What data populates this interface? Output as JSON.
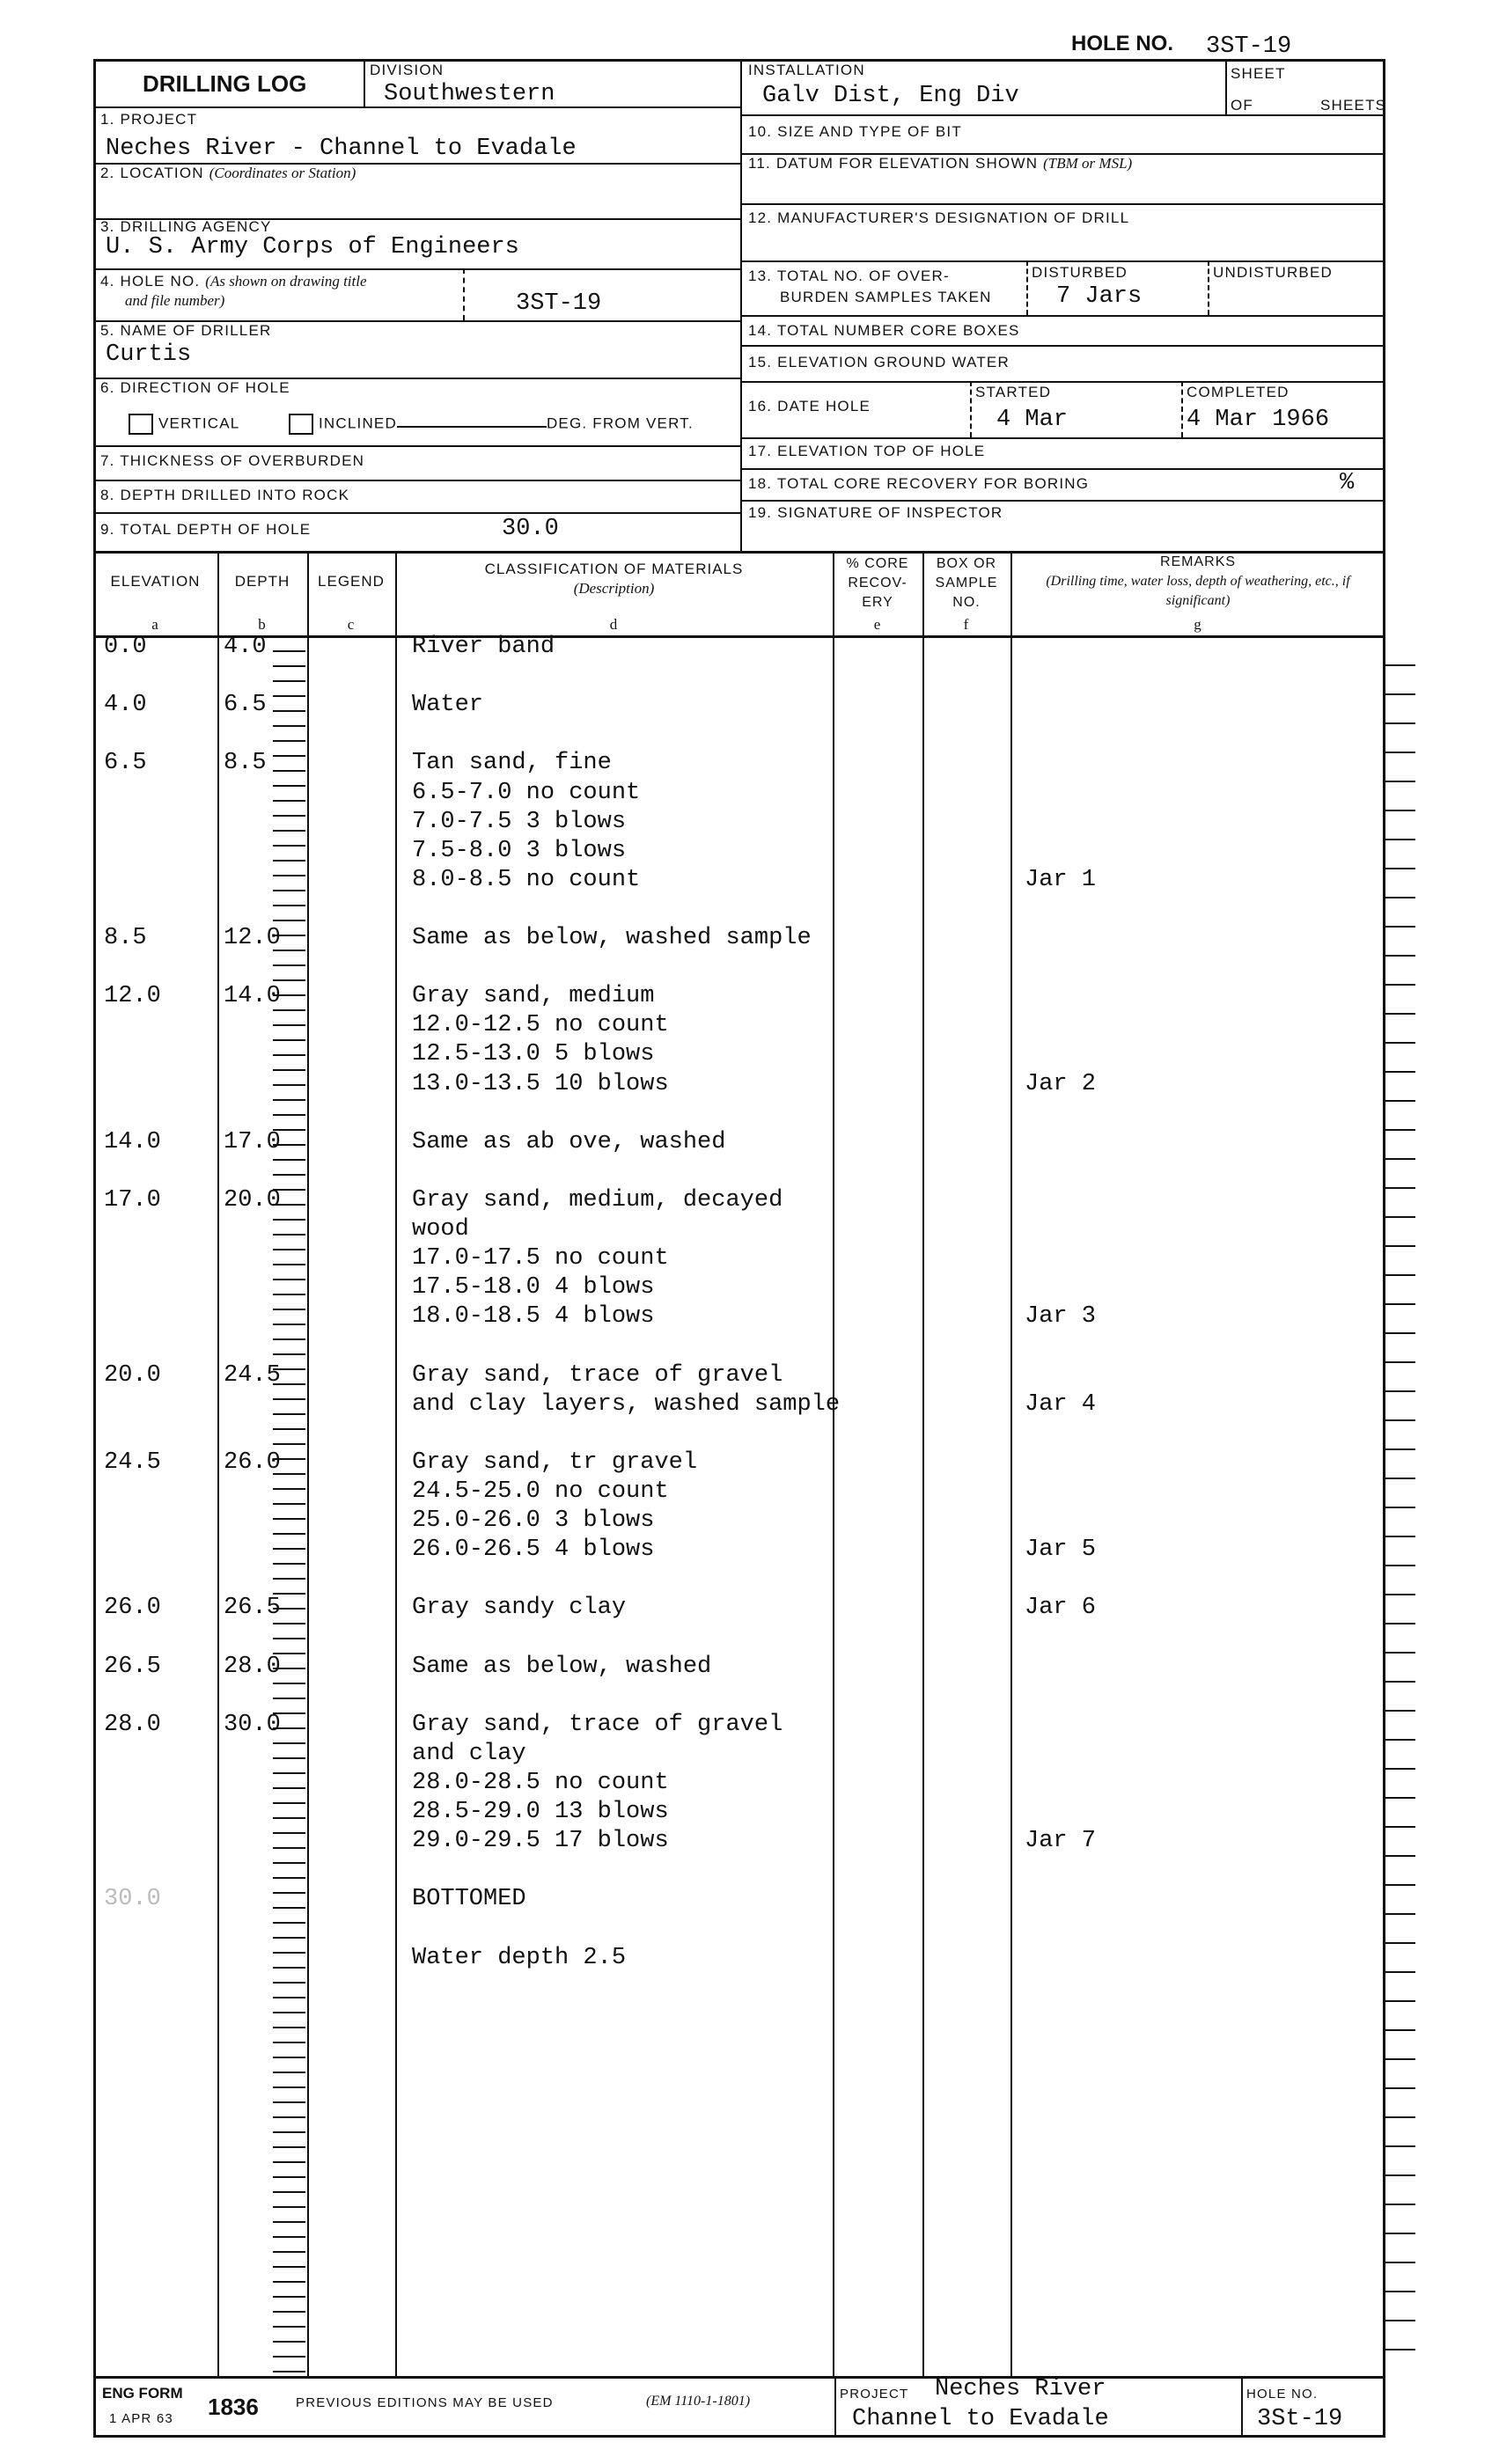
{
  "hole_no_top": {
    "label": "Hole No.",
    "value": "3ST-19"
  },
  "header": {
    "title": "DRILLING LOG",
    "division": {
      "label": "DIVISION",
      "value": "Southwestern"
    },
    "installation": {
      "label": "INSTALLATION",
      "value": "Galv Dist, Eng Div"
    },
    "sheet": {
      "label": "SHEET",
      "of": "OF",
      "sheets": "SHEETS"
    },
    "project": {
      "label": "1. PROJECT",
      "value": "Neches River - Channel to Evadale"
    },
    "location": {
      "label": "2. LOCATION",
      "note": "(Coordinates or Station)"
    },
    "agency": {
      "label": "3. DRILLING AGENCY",
      "value": "U. S. Army Corps of Engineers"
    },
    "hole_no": {
      "label": "4. HOLE NO.",
      "note1": "(As shown on drawing title",
      "note2": "and file number)",
      "value": "3ST-19"
    },
    "driller": {
      "label": "5. NAME OF DRILLER",
      "value": "Curtis"
    },
    "direction": {
      "label": "6. DIRECTION OF HOLE",
      "vertical": "VERTICAL",
      "inclined": "INCLINED",
      "deg": "DEG. FROM VERT."
    },
    "thickness": {
      "label": "7. THICKNESS OF OVERBURDEN"
    },
    "rock": {
      "label": "8. DEPTH DRILLED INTO ROCK"
    },
    "total_depth": {
      "label": "9. TOTAL DEPTH OF HOLE",
      "value": "30.0"
    },
    "bit": {
      "label": "10. SIZE AND TYPE OF BIT"
    },
    "datum": {
      "label": "11. DATUM FOR ELEVATION SHOWN",
      "note": "(TBM or MSL)"
    },
    "manufacturer": {
      "label": "12. MANUFACTURER'S DESIGNATION OF DRILL"
    },
    "samples": {
      "label1": "13. TOTAL NO. OF OVER-",
      "label2": "BURDEN SAMPLES TAKEN",
      "disturbed_label": "DISTURBED",
      "disturbed": "7 Jars",
      "undisturbed_label": "UNDISTURBED"
    },
    "core_boxes": {
      "label": "14. TOTAL NUMBER CORE BOXES"
    },
    "ground_water": {
      "label": "15. ELEVATION GROUND WATER"
    },
    "date": {
      "label": "16. DATE HOLE",
      "started_label": "STARTED",
      "started": "4 Mar",
      "completed_label": "COMPLETED",
      "completed": "4 Mar 1966"
    },
    "top_elev": {
      "label": "17. ELEVATION TOP OF HOLE"
    },
    "recovery": {
      "label": "18. TOTAL CORE RECOVERY FOR BORING",
      "unit": "%"
    },
    "inspector": {
      "label": "19. SIGNATURE OF INSPECTOR"
    }
  },
  "columns": [
    {
      "title": "ELEVATION",
      "letter": "a"
    },
    {
      "title": "DEPTH",
      "letter": "b"
    },
    {
      "title": "LEGEND",
      "letter": "c"
    },
    {
      "title": "CLASSIFICATION OF MATERIALS",
      "sub": "(Description)",
      "letter": "d"
    },
    {
      "title": "% CORE RECOV- ERY",
      "letter": "e"
    },
    {
      "title": "BOX OR SAMPLE NO.",
      "letter": "f"
    },
    {
      "title": "REMARKS",
      "sub": "(Drilling time, water loss, depth of weathering, etc., if significant)",
      "letter": "g"
    }
  ],
  "rows": [
    {
      "elevation": "0.0",
      "depth": "4.0",
      "lines": [
        "River band"
      ],
      "remark": ""
    },
    {
      "elevation": "4.0",
      "depth": "6.5",
      "lines": [
        "Water"
      ],
      "remark": ""
    },
    {
      "elevation": "6.5",
      "depth": "8.5",
      "lines": [
        "Tan sand, fine",
        "6.5-7.0  no count",
        "7.0-7.5  3 blows",
        "7.5-8.0  3 blows",
        "8.0-8.5  no count"
      ],
      "remark": "Jar  1"
    },
    {
      "elevation": "8.5",
      "depth": "12.0",
      "lines": [
        "Same as below, washed sample"
      ],
      "remark": ""
    },
    {
      "elevation": "12.0",
      "depth": "14.0",
      "lines": [
        "Gray sand, medium",
        "12.0-12.5  no count",
        "12.5-13.0  5 blows",
        "13.0-13.5  10 blows"
      ],
      "remark": "Jar  2"
    },
    {
      "elevation": "14.0",
      "depth": "17.0",
      "lines": [
        "Same as ab ove, washed"
      ],
      "remark": ""
    },
    {
      "elevation": "17.0",
      "depth": "20.0",
      "lines": [
        "Gray sand, medium, decayed",
        "wood",
        "17.0-17.5  no count",
        "17.5-18.0  4 blows",
        "18.0-18.5  4 blows"
      ],
      "remark": "Jar  3"
    },
    {
      "elevation": "20.0",
      "depth": "24.5",
      "lines": [
        "Gray sand, trace of gravel",
        "and clay layers, washed sample"
      ],
      "remark": "Jar  4"
    },
    {
      "elevation": "24.5",
      "depth": "26.0",
      "lines": [
        "Gray sand, tr gravel",
        "24.5-25.0  no count",
        "25.0-26.0  3 blows",
        "26.0-26.5  4 blows"
      ],
      "remark": "Jar  5"
    },
    {
      "elevation": "26.0",
      "depth": "26.5",
      "lines": [
        "Gray sandy clay"
      ],
      "remark": "Jar  6"
    },
    {
      "elevation": "26.5",
      "depth": "28.0",
      "lines": [
        "Same as below, washed"
      ],
      "remark": ""
    },
    {
      "elevation": "28.0",
      "depth": "30.0",
      "lines": [
        "Gray sand, trace of gravel",
        "and clay",
        "28.0-28.5  no count",
        "28.5-29.0  13 blows",
        "29.0-29.5  17 blows"
      ],
      "remark": "Jar  7"
    },
    {
      "elevation": "30.0",
      "depth": "",
      "lines": [
        "BOTTOMED"
      ],
      "remark": "",
      "faint": true
    },
    {
      "elevation": "",
      "depth": "",
      "lines": [
        "Water depth  2.5"
      ],
      "remark": ""
    }
  ],
  "footer": {
    "form": "ENG FORM",
    "date": "1 APR 63",
    "number": "1836",
    "note": "PREVIOUS EDITIONS MAY BE USED",
    "ref": "(EM 1110-1-1801)",
    "project_label": "PROJECT",
    "project1": "Neches River",
    "project2": "Channel to Evadale",
    "hole_label": "HOLE NO.",
    "hole": "3St-19"
  }
}
